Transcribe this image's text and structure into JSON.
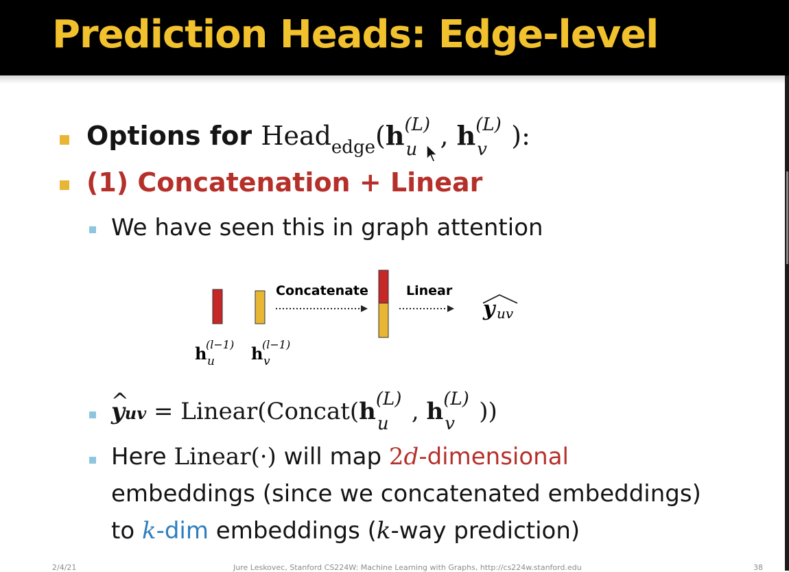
{
  "slide": {
    "title": "Prediction Heads: Edge-level",
    "bullet1": {
      "prefix": "Options for ",
      "head": "Head",
      "edge_sub": "edge",
      "open": "(",
      "h": "h",
      "u": "u",
      "v": "v",
      "L": "(L)",
      "comma": ", ",
      "close": "):"
    },
    "bullet2": "(1) Concatenation + Linear",
    "sub1": "We have seen this in graph attention",
    "diagram": {
      "concatenate_label": "Concatenate",
      "linear_label": "Linear",
      "y": "y",
      "uv": "uv",
      "hu": "h",
      "hu_sub": "u",
      "hu_sup": "(l−1)",
      "hv": "h",
      "hv_sub": "v",
      "hv_sup": "(l−1)"
    },
    "sub2": {
      "y": "y",
      "uv": "uv",
      "eq": " = Linear(Concat(",
      "h": "h",
      "u": "u",
      "v": "v",
      "L": "(L)",
      "comma": ", ",
      "close": "))"
    },
    "sub3": {
      "here": "Here ",
      "linear": "Linear(·)",
      "will_map": " will map ",
      "two_d_num": "2",
      "two_d_var": "d",
      "two_d_rest": "-dimensional",
      "line2": "embeddings (since we concatenated embeddings)",
      "to": "to ",
      "k": "k",
      "kdim": "-dim",
      "emb": " embeddings (",
      "k2": "k",
      "way": "-way prediction)"
    },
    "footer": {
      "date": "2/4/21",
      "credit": "Jure Leskovec, Stanford CS224W: Machine Learning with Graphs, http://cs224w.stanford.edu",
      "page": "38"
    }
  },
  "colors": {
    "title": "#f2c12e",
    "red": "#b5302a",
    "blue": "#2e7ebf",
    "bar_red": "#c62828",
    "bar_yellow": "#e8b534",
    "bullet": "#e8b534",
    "subbullet": "#8ec5df"
  }
}
